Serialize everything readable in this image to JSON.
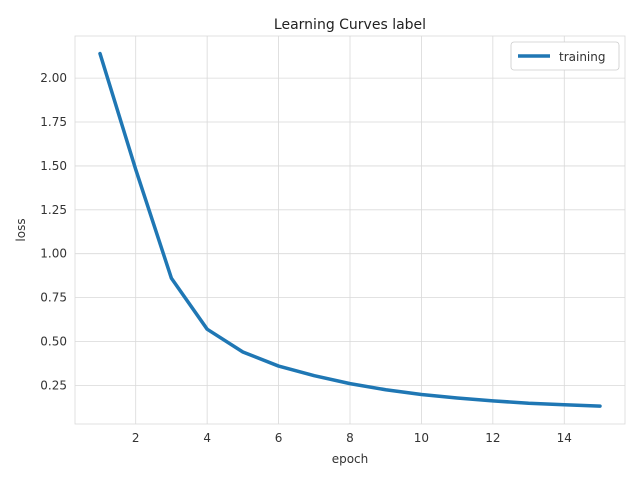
{
  "chart_data": {
    "type": "line",
    "title": "Learning Curves label",
    "xlabel": "epoch",
    "ylabel": "loss",
    "xlim": [
      0.3,
      15.7
    ],
    "ylim": [
      0.03,
      2.24
    ],
    "xticks": [
      2,
      4,
      6,
      8,
      10,
      12,
      14
    ],
    "yticks": [
      0.25,
      0.5,
      0.75,
      1.0,
      1.25,
      1.5,
      1.75,
      2.0
    ],
    "ytick_labels": [
      "0.25",
      "0.50",
      "0.75",
      "1.00",
      "1.25",
      "1.50",
      "1.75",
      "2.00"
    ],
    "grid": true,
    "legend_position": "top-right",
    "series": [
      {
        "name": "training",
        "color": "#1f77b4",
        "x": [
          1,
          2,
          3,
          4,
          5,
          6,
          7,
          8,
          9,
          10,
          11,
          12,
          13,
          14,
          15
        ],
        "y": [
          2.14,
          1.48,
          0.86,
          0.57,
          0.44,
          0.36,
          0.305,
          0.26,
          0.225,
          0.198,
          0.178,
          0.162,
          0.148,
          0.14,
          0.132
        ]
      }
    ]
  }
}
